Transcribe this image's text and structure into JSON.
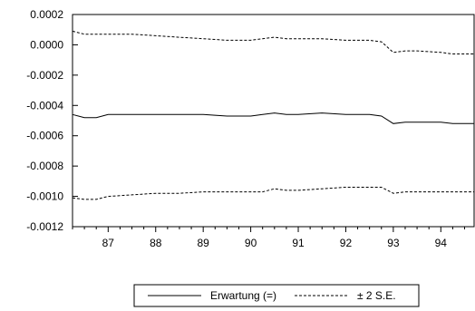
{
  "chart_data": {
    "type": "line",
    "title": "",
    "xlabel": "",
    "ylabel": "",
    "xlim": [
      86.25,
      94.7
    ],
    "ylim": [
      -0.0012,
      0.0002
    ],
    "x_ticks": [
      87,
      88,
      89,
      90,
      91,
      92,
      93,
      94
    ],
    "y_ticks": [
      0.0002,
      0.0,
      -0.0002,
      -0.0004,
      -0.0006,
      -0.0008,
      -0.001,
      -0.0012
    ],
    "y_tick_labels": [
      "0.0002",
      "0.0000",
      "-0.0002",
      "-0.0004",
      "-0.0006",
      "-0.0008",
      "-0.0010",
      "-0.0012"
    ],
    "grid": false,
    "legend_position": "bottom-center",
    "legend_labels": [
      "Erwartung (=)",
      "± 2 S.E."
    ],
    "series": [
      {
        "name": "Erwartung (=)",
        "style": "solid",
        "color": "#000000",
        "x": [
          86.25,
          86.5,
          86.75,
          87.0,
          87.25,
          87.5,
          87.75,
          88.0,
          88.5,
          89.0,
          89.5,
          90.0,
          90.25,
          90.5,
          90.75,
          91.0,
          91.5,
          92.0,
          92.25,
          92.5,
          92.75,
          93.0,
          93.25,
          93.5,
          94.0,
          94.25,
          94.5,
          94.7
        ],
        "values": [
          -0.00046,
          -0.00048,
          -0.00048,
          -0.00046,
          -0.00046,
          -0.00046,
          -0.00046,
          -0.00046,
          -0.00046,
          -0.00046,
          -0.00047,
          -0.00047,
          -0.00046,
          -0.00045,
          -0.00046,
          -0.00046,
          -0.00045,
          -0.00046,
          -0.00046,
          -0.00046,
          -0.00047,
          -0.00052,
          -0.00051,
          -0.00051,
          -0.00051,
          -0.00052,
          -0.00052,
          -0.00052
        ]
      },
      {
        "name": "± 2 S.E.",
        "style": "dashed",
        "color": "#000000",
        "x": [
          86.25,
          86.5,
          86.75,
          87.0,
          87.5,
          88.0,
          88.5,
          89.0,
          89.5,
          90.0,
          90.25,
          90.5,
          90.75,
          91.0,
          91.5,
          92.0,
          92.25,
          92.5,
          92.75,
          93.0,
          93.25,
          93.5,
          94.0,
          94.25,
          94.5,
          94.7
        ],
        "values": [
          9e-05,
          7e-05,
          7e-05,
          7e-05,
          7e-05,
          6e-05,
          5e-05,
          4e-05,
          3e-05,
          3e-05,
          4e-05,
          5e-05,
          4e-05,
          4e-05,
          4e-05,
          3e-05,
          3e-05,
          3e-05,
          2e-05,
          -5e-05,
          -4e-05,
          -4e-05,
          -5e-05,
          -6e-05,
          -6e-05,
          -6e-05
        ]
      },
      {
        "name": "± 2 S.E.",
        "style": "dashed",
        "color": "#000000",
        "x": [
          86.25,
          86.5,
          86.75,
          87.0,
          87.5,
          88.0,
          88.5,
          89.0,
          89.5,
          90.0,
          90.25,
          90.5,
          90.75,
          91.0,
          91.5,
          92.0,
          92.25,
          92.5,
          92.75,
          93.0,
          93.25,
          93.5,
          94.0,
          94.25,
          94.5,
          94.7
        ],
        "values": [
          -0.00101,
          -0.00102,
          -0.00102,
          -0.001,
          -0.00099,
          -0.00098,
          -0.00098,
          -0.00097,
          -0.00097,
          -0.00097,
          -0.00097,
          -0.00095,
          -0.00096,
          -0.00096,
          -0.00095,
          -0.00094,
          -0.00094,
          -0.00094,
          -0.00094,
          -0.00098,
          -0.00097,
          -0.00097,
          -0.00097,
          -0.00097,
          -0.00097,
          -0.00097
        ]
      }
    ]
  }
}
